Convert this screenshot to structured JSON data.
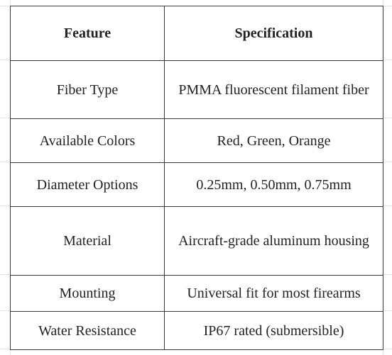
{
  "table": {
    "headers": {
      "feature": "Feature",
      "specification": "Specification"
    },
    "rows": [
      {
        "feature": "Fiber Type",
        "specification": "PMMA fluorescent filament fiber"
      },
      {
        "feature": "Available Colors",
        "specification": "Red, Green, Orange"
      },
      {
        "feature": "Diameter Options",
        "specification": "0.25mm, 0.50mm, 0.75mm"
      },
      {
        "feature": "Material",
        "specification": "Aircraft-grade aluminum housing"
      },
      {
        "feature": "Mounting",
        "specification": "Universal fit for most firearms"
      },
      {
        "feature": "Water Resistance",
        "specification": "IP67 rated (submersible)"
      }
    ]
  }
}
